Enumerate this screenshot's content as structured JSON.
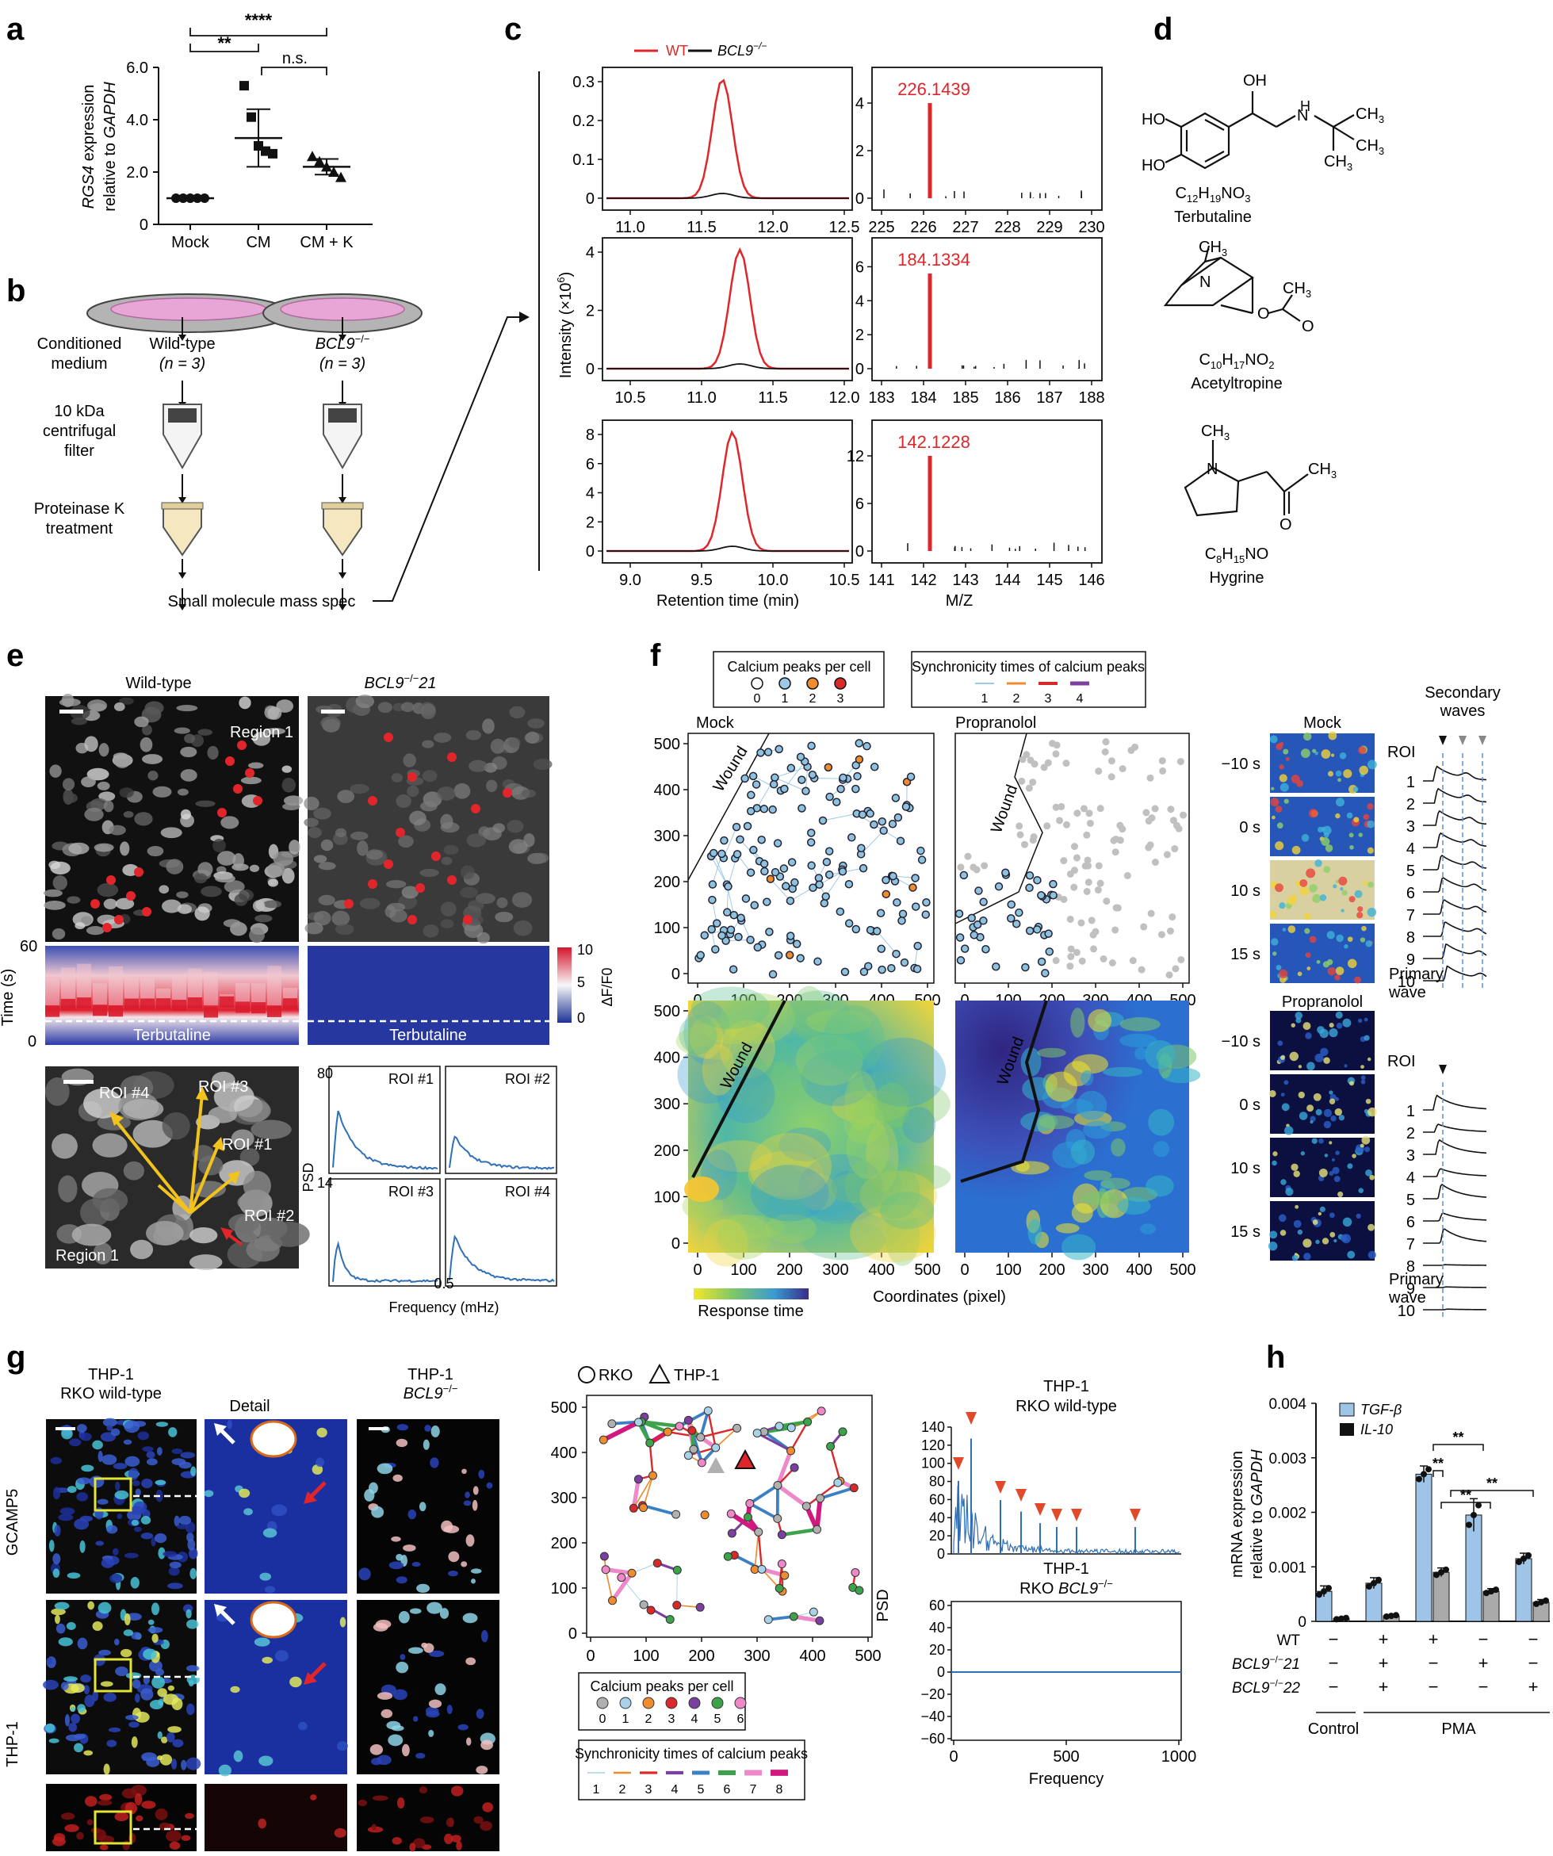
{
  "panels": {
    "a": {
      "label": "a",
      "ylabel_gene": "RGS4",
      "ylabel_rest": " expression",
      "ylabel_line2a": "relative to ",
      "ylabel_line2b": "GAPDH",
      "yticks": [
        "0",
        "2.0",
        "4.0",
        "6.0"
      ],
      "categories": [
        "Mock",
        "CM",
        "CM + K"
      ],
      "sig": [
        "****",
        "**",
        "n.s."
      ]
    },
    "b": {
      "label": "b",
      "cond_medium": [
        "Conditioned",
        "medium"
      ],
      "wt": "Wild-type",
      "wt_n": "(n = 3)",
      "ko": "BCL9",
      "ko_sup": "−/−",
      "ko_n": "(n = 3)",
      "filter": [
        "10 kDa",
        "centrifugal",
        "filter"
      ],
      "protk": [
        "Proteinase K",
        "treatment"
      ],
      "ms": "Small molecule mass spec"
    },
    "c": {
      "label": "c",
      "legend_wt": "WT",
      "legend_ko": "BCL9",
      "legend_ko_sup": "−/−",
      "ylabel": "Intensity (×10",
      "ylabel_sup": "6",
      "ylabel_end": ")",
      "xlabel_rt": "Retention time (min)",
      "xlabel_mz": "M/Z",
      "rows": [
        {
          "rt_x": [
            "11.0",
            "11.5",
            "12.0",
            "12.5"
          ],
          "rt_y": [
            "0",
            "0.1",
            "0.2",
            "0.3"
          ],
          "mz_x": [
            "225",
            "226",
            "227",
            "228",
            "229",
            "230"
          ],
          "mz_y": [
            "0",
            "2",
            "4"
          ],
          "peak": "226.1439"
        },
        {
          "rt_x": [
            "10.5",
            "11.0",
            "11.5",
            "12.0"
          ],
          "rt_y": [
            "0",
            "2",
            "4"
          ],
          "mz_x": [
            "183",
            "184",
            "185",
            "186",
            "187",
            "188"
          ],
          "mz_y": [
            "0",
            "2",
            "4",
            "6"
          ],
          "peak": "184.1334"
        },
        {
          "rt_x": [
            "9.0",
            "9.5",
            "10.0",
            "10.5"
          ],
          "rt_y": [
            "0",
            "2",
            "4",
            "6",
            "8"
          ],
          "mz_x": [
            "141",
            "142",
            "143",
            "144",
            "145",
            "146"
          ],
          "mz_y": [
            "0",
            "6",
            "12"
          ],
          "peak": "142.1228"
        }
      ]
    },
    "d": {
      "label": "d",
      "compounds": [
        {
          "formula": "C12H19NO3",
          "name": "Terbutaline"
        },
        {
          "formula": "C10H17NO2",
          "name": "Acetyltropine"
        },
        {
          "formula": "C8H15NO",
          "name": "Hygrine"
        }
      ]
    },
    "e": {
      "label": "e",
      "wt_title": "Wild-type",
      "ko_title": "BCL9",
      "ko_sup": "−/−",
      "ko_num": "21",
      "region": "Region 1",
      "time_label": "Time (s)",
      "time_ticks": [
        "60",
        "0"
      ],
      "terbutaline": "Terbutaline",
      "cbar_ticks": [
        "10",
        "5",
        "0"
      ],
      "cbar_label": "ΔF/F0",
      "rois": [
        "ROI #4",
        "ROI #3",
        "ROI #1",
        "ROI #2"
      ],
      "psd_label": "PSD",
      "psd_ticks": [
        "80",
        "14"
      ],
      "psd_panels": [
        "ROI #1",
        "ROI #2",
        "ROI #3",
        "ROI #4"
      ],
      "freq_tick": "0.5",
      "freq_label": "Frequency (mHz)"
    },
    "f": {
      "label": "f",
      "legend1_title": "Calcium peaks per cell",
      "legend1_items": [
        "0",
        "1",
        "2",
        "3"
      ],
      "legend2_title": "Synchronicity times of calcium peaks",
      "legend2_items": [
        "1",
        "2",
        "3",
        "4"
      ],
      "mock": "Mock",
      "propranolol": "Propranolol",
      "wound": "Wound",
      "axis_ticks": [
        "0",
        "100",
        "200",
        "300",
        "400",
        "500"
      ],
      "xlabel": "Coordinates (pixel)",
      "response_time": "Response time",
      "times": [
        "−10 s",
        "0 s",
        "10 s",
        "15 s"
      ],
      "secondary": [
        "Secondary",
        "waves"
      ],
      "roi": "ROI",
      "roi_nums": [
        "1",
        "2",
        "3",
        "4",
        "5",
        "6",
        "7",
        "8",
        "9",
        "10"
      ],
      "primary": [
        "Primary",
        "wave"
      ]
    },
    "g": {
      "label": "g",
      "thp_wt": [
        "THP-1",
        "RKO wild-type"
      ],
      "detail": "Detail",
      "thp_ko": "THP-1",
      "ko": "BCL9",
      "ko_sup": "−/−",
      "gcamp": "GCAMP5",
      "thp_row": "THP-1",
      "legend_rko": "RKO",
      "legend_thp": "THP-1",
      "net_ticks": [
        "0",
        "100",
        "200",
        "300",
        "400",
        "500"
      ],
      "legend1_title": "Calcium peaks per cell",
      "legend1_items": [
        "0",
        "1",
        "2",
        "3",
        "4",
        "5",
        "6"
      ],
      "legend2_title": "Synchronicity times of calcium peaks",
      "legend2_items": [
        "1",
        "2",
        "3",
        "4",
        "5",
        "6",
        "7",
        "8"
      ],
      "psd_wt": [
        "THP-1",
        "RKO wild-type"
      ],
      "psd_ko": [
        "THP-1",
        "RKO"
      ],
      "psd_top_ticks": [
        "140",
        "120",
        "100",
        "80",
        "60",
        "40",
        "20",
        "0"
      ],
      "psd_bot_ticks": [
        "60",
        "40",
        "20",
        "0",
        "−20",
        "−40",
        "−60"
      ],
      "psd_x": [
        "0",
        "500",
        "1000"
      ],
      "psd_label": "PSD",
      "freq_label": "Frequency"
    },
    "h": {
      "label": "h",
      "legend": [
        "TGF-β",
        "IL-10"
      ],
      "ylabel1": "mRNA expression",
      "ylabel2a": "relative to ",
      "ylabel2b": "GAPDH",
      "yticks": [
        "0",
        "0.001",
        "0.002",
        "0.003",
        "0.004"
      ],
      "row_labels": [
        "WT",
        "BCL9",
        "BCL9"
      ],
      "row_sup": "−/−",
      "row_nums": [
        "",
        "21",
        "22"
      ],
      "rows": [
        [
          "−",
          "+",
          "+",
          "−",
          "−"
        ],
        [
          "−",
          "+",
          "−",
          "+",
          "−"
        ],
        [
          "−",
          "+",
          "−",
          "−",
          "+"
        ]
      ],
      "groups": [
        "Control",
        "PMA"
      ],
      "sig": "**"
    }
  },
  "chart_data": [
    {
      "type": "scatter",
      "panel": "a",
      "categories": [
        "Mock",
        "CM",
        "CM + K"
      ],
      "ylim": [
        0,
        6.0
      ],
      "series": [
        {
          "values": [
            [
              1.0,
              1.0,
              1.0,
              1.0,
              1.0
            ],
            [
              5.3,
              4.1,
              3.0,
              2.8,
              2.7
            ],
            [
              2.6,
              2.4,
              2.2,
              2.0,
              1.8
            ]
          ]
        }
      ],
      "means": [
        1.0,
        3.3,
        2.2
      ],
      "sd": [
        0.0,
        1.1,
        0.3
      ]
    },
    {
      "type": "bar",
      "panel": "h",
      "ylim": [
        0,
        0.004
      ],
      "series": [
        {
          "name": "TGF-β",
          "values": [
            0.00055,
            0.0007,
            0.0027,
            0.00195,
            0.00115
          ],
          "err": [
            0.0001,
            0.0001,
            0.00015,
            0.0003,
            0.0001
          ]
        },
        {
          "name": "IL-10",
          "values": [
            5e-05,
            0.0001,
            0.0009,
            0.00055,
            0.00035
          ],
          "err": [
            2e-05,
            2e-05,
            8e-05,
            5e-05,
            5e-05
          ]
        }
      ]
    }
  ]
}
